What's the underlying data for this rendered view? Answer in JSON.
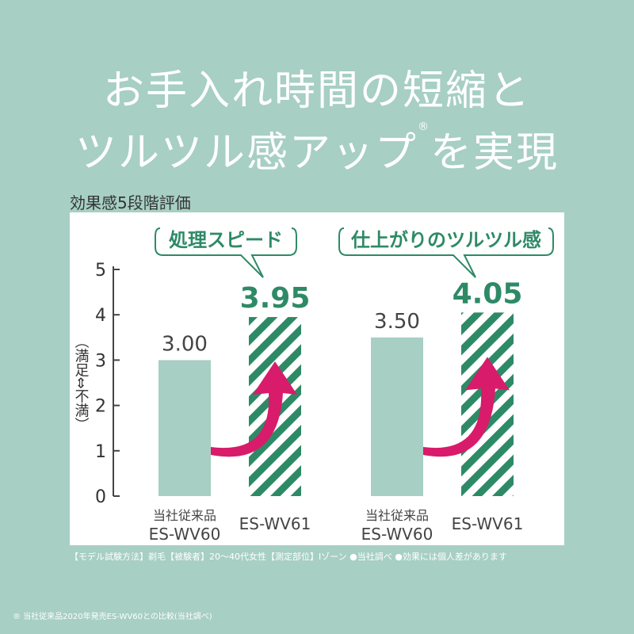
{
  "headline": {
    "line1": "お手入れ時間の短縮と",
    "line2": "ツルツル感アップ",
    "reg_mark": "®",
    "line2_tail": "を実現"
  },
  "chart_data": {
    "type": "bar",
    "title": "効果感5段階評価",
    "ylabel": "（満足⇔不満）",
    "ylim": [
      0,
      5
    ],
    "yticks": [
      "0",
      "1",
      "2",
      "3",
      "4",
      "5"
    ],
    "groups": [
      {
        "label": "処理スピード",
        "bars": [
          {
            "category": [
              "当社従来品",
              "ES-WV60"
            ],
            "value": 3.0,
            "label": "3.00",
            "style": "solid"
          },
          {
            "category": [
              "ES-WV61"
            ],
            "value": 3.95,
            "label": "3.95",
            "style": "striped"
          }
        ]
      },
      {
        "label": "仕上がりのツルツル感",
        "bars": [
          {
            "category": [
              "当社従来品",
              "ES-WV60"
            ],
            "value": 3.5,
            "label": "3.50",
            "style": "solid"
          },
          {
            "category": [
              "ES-WV61"
            ],
            "value": 4.05,
            "label": "4.05",
            "style": "striped"
          }
        ]
      }
    ],
    "colors": {
      "old_bar": "#a7cfc3",
      "new_bar": "#2e8a66",
      "new_label": "#2e8a66",
      "arrow": "#d81b6a",
      "axis": "#444444"
    }
  },
  "note": "【モデル試験方法】剃毛【被験者】20～40代女性【測定部位】Iゾーン ●当社調べ ●効果には個人差があります",
  "footnote": "® 当社従来品2020年発売ES-WV60との比較(当社調べ)"
}
